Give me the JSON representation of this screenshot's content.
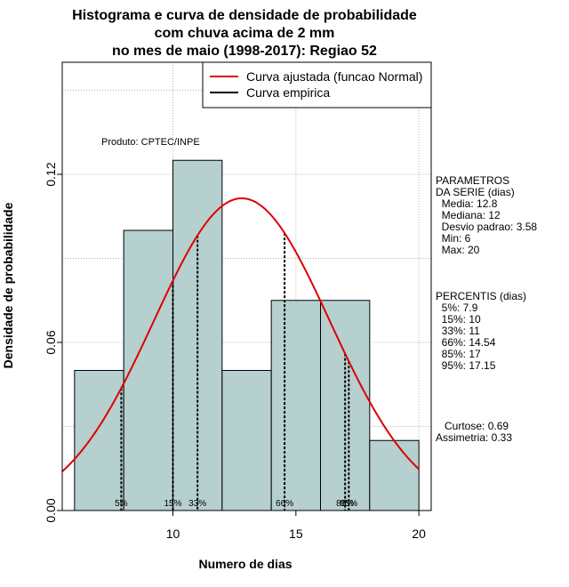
{
  "chart_data": {
    "type": "bar",
    "title_lines": [
      "Histograma e curva de densidade de probabilidade",
      "com chuva acima de 2 mm",
      "no mes de maio (1998-2017): Regiao 52"
    ],
    "xlabel": "Numero de dias",
    "ylabel": "Densidade de probabilidade",
    "xlim": [
      5.5,
      20.5
    ],
    "ylim": [
      0,
      0.16
    ],
    "x_ticks": [
      10,
      15,
      20
    ],
    "y_ticks": [
      0.0,
      0.06,
      0.12
    ],
    "y_tick_labels": [
      "0.00",
      "0.06",
      "0.12"
    ],
    "bins": [
      {
        "from": 6,
        "to": 8,
        "density": 0.05
      },
      {
        "from": 8,
        "to": 10,
        "density": 0.1
      },
      {
        "from": 10,
        "to": 12,
        "density": 0.125
      },
      {
        "from": 12,
        "to": 14,
        "density": 0.05
      },
      {
        "from": 14,
        "to": 16,
        "density": 0.075
      },
      {
        "from": 16,
        "to": 18,
        "density": 0.075
      },
      {
        "from": 18,
        "to": 20,
        "density": 0.025
      }
    ],
    "normal_fit": {
      "mean": 12.8,
      "sd": 3.58
    },
    "percentile_lines": [
      {
        "label": "5%",
        "x": 7.9
      },
      {
        "label": "15%",
        "x": 10
      },
      {
        "label": "33%",
        "x": 11
      },
      {
        "label": "66%",
        "x": 14.54
      },
      {
        "label": "85%",
        "x": 17
      },
      {
        "label": "95%",
        "x": 17.15
      }
    ],
    "legend": {
      "placement": "top-right",
      "entries": [
        {
          "label": "Curva ajustada (funcao Normal)",
          "color": "#dd0000"
        },
        {
          "label": "Curva empirica",
          "color": "#000000"
        }
      ]
    },
    "annotation": "Produto: CPTEC/INPE",
    "colors": {
      "bar_fill": "#b6cfcf",
      "curve": "#dd0000",
      "grid": "#b0b0b0"
    }
  },
  "side_panel": {
    "params_lines": [
      "PARAMETROS",
      "DA SERIE (dias)",
      "  Media: 12.8",
      "  Mediana: 12",
      "  Desvio padrao: 3.58",
      "  Min: 6",
      "  Max: 20"
    ],
    "percentis_lines": [
      "PERCENTIS (dias)",
      "  5%: 7.9",
      "  15%: 10",
      "  33%: 11",
      "  66%: 14.54",
      "  85%: 17",
      "  95%: 17.15"
    ],
    "shape_lines": [
      "   Curtose: 0.69",
      "Assimetria: 0.33"
    ]
  }
}
